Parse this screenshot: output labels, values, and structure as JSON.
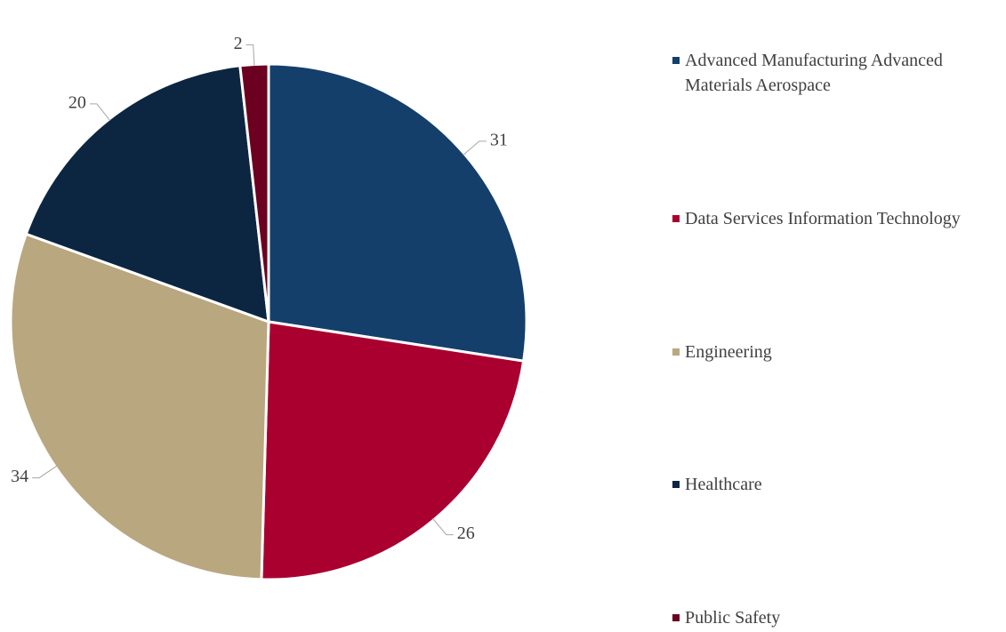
{
  "chart_data": {
    "type": "pie",
    "categories": [
      "Advanced Manufacturing Advanced Materials Aerospace",
      "Data Services Information Technology",
      "Engineering",
      "Healthcare",
      "Public Safety"
    ],
    "values": [
      31,
      26,
      34,
      20,
      2
    ],
    "colors": [
      "#143f6b",
      "#aa0030",
      "#b9a77f",
      "#0c2641",
      "#6b0020"
    ],
    "legend": "right"
  }
}
